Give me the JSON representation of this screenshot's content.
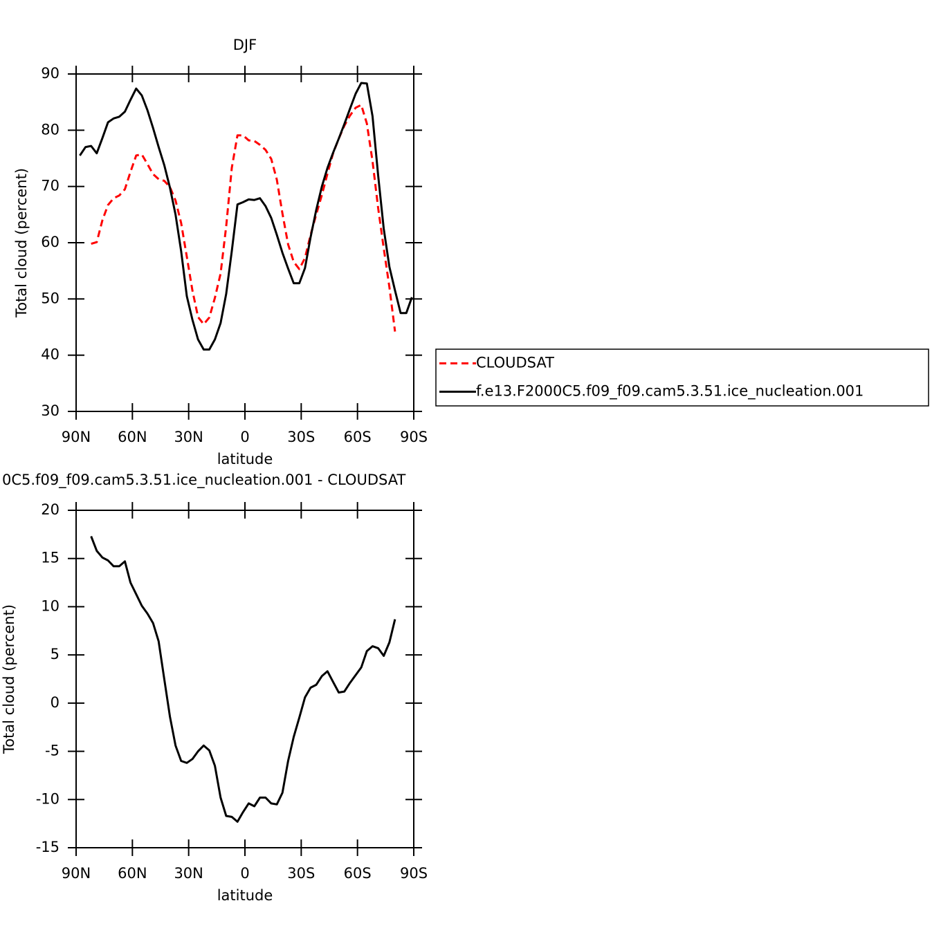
{
  "chart_data": [
    {
      "type": "line",
      "title": "DJF",
      "xlabel": "latitude",
      "ylabel": "Total cloud (percent)",
      "x": [
        88,
        85,
        82,
        79,
        76,
        73,
        70,
        67,
        64,
        61,
        58,
        55,
        52,
        49,
        46,
        43,
        40,
        37,
        34,
        31,
        28,
        25,
        22,
        19,
        16,
        13,
        10,
        7,
        4,
        1,
        -2,
        -5,
        -8,
        -11,
        -14,
        -17,
        -20,
        -23,
        -26,
        -29,
        -32,
        -35,
        -38,
        -41,
        -44,
        -47,
        -50,
        -53,
        -56,
        -59,
        -62,
        -65,
        -68,
        -71,
        -74,
        -77,
        -80,
        -83,
        -86,
        -89
      ],
      "series": [
        {
          "name": "CLOUDSAT",
          "color": "#ff0000",
          "line_style": "dashed",
          "values": [
            null,
            null,
            59.8,
            60.1,
            64,
            66.7,
            67.9,
            68.4,
            69.5,
            72.6,
            75.5,
            75.7,
            74,
            72.2,
            71.3,
            71,
            69.9,
            67.5,
            63.5,
            57.5,
            51.5,
            46.8,
            45.5,
            46.7,
            50.2,
            54.5,
            62.9,
            73.3,
            79.1,
            79.1,
            78.2,
            78.1,
            77.4,
            76.5,
            74.9,
            71.2,
            65.2,
            59.7,
            56.6,
            55.3,
            57.3,
            61.4,
            65,
            68.5,
            72.3,
            75.9,
            78.5,
            80.8,
            82.6,
            84,
            84.5,
            81.2,
            74.5,
            66.2,
            59,
            52.1,
            44.2,
            null,
            null,
            null
          ]
        },
        {
          "name": "f.e13.F2000C5.f09_f09.cam5.3.51.ice_nucleation.001",
          "color": "#000000",
          "line_style": "solid",
          "values": [
            75.5,
            77,
            77.2,
            75.9,
            78.6,
            81.4,
            82.1,
            82.4,
            83.3,
            85.4,
            87.4,
            86.2,
            83.6,
            80.4,
            77,
            73.8,
            69.8,
            65,
            58.5,
            50.5,
            46.3,
            42.8,
            41,
            41,
            42.8,
            45.7,
            50.9,
            58.5,
            66.8,
            67.2,
            67.7,
            67.6,
            67.9,
            66.5,
            64.4,
            61.4,
            58.2,
            55.4,
            52.8,
            52.8,
            55.5,
            61,
            65.8,
            70,
            73.3,
            76,
            78.5,
            81.1,
            83.8,
            86.5,
            88.4,
            88.3,
            82.5,
            72,
            62.5,
            55.7,
            51.5,
            47.5,
            47.5,
            50.3
          ]
        }
      ],
      "xlim": [
        90,
        -90
      ],
      "xticks": [
        {
          "value": 90,
          "label": "90N"
        },
        {
          "value": 60,
          "label": "60N"
        },
        {
          "value": 30,
          "label": "30N"
        },
        0,
        {
          "value": -30,
          "label": "30S"
        },
        {
          "value": -60,
          "label": "60S"
        },
        {
          "value": -90,
          "label": "90S"
        }
      ],
      "ylim": [
        30,
        90
      ],
      "yticks": [
        30,
        40,
        50,
        60,
        70,
        80,
        90
      ],
      "legend": "right"
    },
    {
      "type": "line",
      "title": "0C5.f09_f09.cam5.3.51.ice_nucleation.001 - CLOUDSAT",
      "xlabel": "latitude",
      "ylabel": "Total cloud (percent)",
      "x": [
        82,
        79,
        76,
        73,
        70,
        67,
        64,
        61,
        58,
        55,
        52,
        49,
        46,
        43,
        40,
        37,
        34,
        31,
        28,
        25,
        22,
        19,
        16,
        13,
        10,
        7,
        4,
        1,
        -2,
        -5,
        -8,
        -11,
        -14,
        -17,
        -20,
        -23,
        -26,
        -29,
        -32,
        -35,
        -38,
        -41,
        -44,
        -47,
        -50,
        -53,
        -56,
        -59,
        -62,
        -65,
        -68,
        -71,
        -74,
        -77,
        -80
      ],
      "values": [
        17.3,
        15.8,
        15.1,
        14.8,
        14.2,
        14.2,
        14.7,
        12.5,
        11.3,
        10.1,
        9.3,
        8.3,
        6.4,
        2.5,
        -1.4,
        -4.4,
        -6,
        -6.2,
        -5.8,
        -5,
        -4.4,
        -4.9,
        -6.5,
        -9.8,
        -11.7,
        -11.8,
        -12.3,
        -11.3,
        -10.4,
        -10.7,
        -9.8,
        -9.8,
        -10.4,
        -10.5,
        -9.3,
        -6,
        -3.5,
        -1.5,
        0.6,
        1.6,
        1.9,
        2.8,
        3.3,
        2.2,
        1.1,
        1.2,
        2.1,
        2.9,
        3.7,
        5.4,
        5.9,
        5.7,
        4.9,
        6.3,
        8.7
      ],
      "color": "#000000",
      "line_style": "solid",
      "xlim": [
        90,
        -90
      ],
      "xticks": [
        {
          "value": 90,
          "label": "90N"
        },
        {
          "value": 60,
          "label": "60N"
        },
        {
          "value": 30,
          "label": "30N"
        },
        0,
        {
          "value": -30,
          "label": "30S"
        },
        {
          "value": -60,
          "label": "60S"
        },
        {
          "value": -90,
          "label": "90S"
        }
      ],
      "ylim": [
        -15,
        20
      ],
      "yticks": [
        -15,
        -10,
        -5,
        0,
        5,
        10,
        15,
        20
      ]
    }
  ]
}
